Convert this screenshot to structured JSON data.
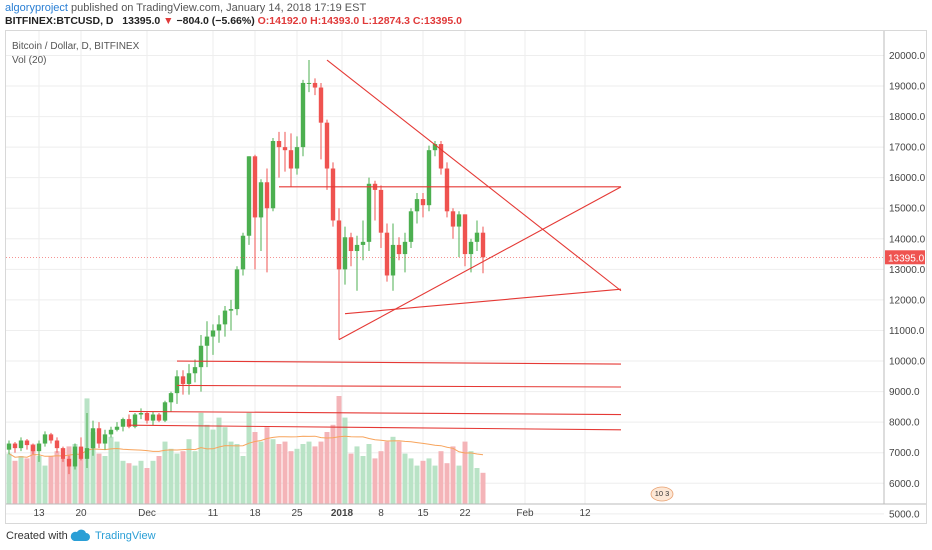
{
  "header": {
    "author": "algoryproject",
    "published": " published on TradingView.com, January 14, 2018 17:19 EST",
    "symbol": "BITFINEX:BTCUSD, D",
    "price": "13395.0",
    "change_arrow": "▼",
    "change": "−804.0 (−5.66%)",
    "ohlc": "O:14192.0 H:14393.0 L:12874.3 C:13395.0"
  },
  "footer": {
    "created_with": "Created with",
    "brand": "TradingView"
  },
  "badge": {
    "text": "10 3"
  },
  "colors": {
    "up": "#26a69a",
    "down": "#ef5350",
    "up_body": "#4caf50",
    "line": "#e53935",
    "ma": "#f7a45c",
    "price_tag": "#ef5350"
  },
  "chart_data": {
    "type": "candlestick",
    "title": "Bitcoin / Dollar, D, BITFINEX",
    "volume_label": "Vol (20)",
    "x_ticks": [
      "13",
      "20",
      "Dec",
      "11",
      "18",
      "25",
      "2018",
      "8",
      "15",
      "22",
      "Feb",
      "12"
    ],
    "y_ticks": [
      "20000.0",
      "19000.0",
      "18000.0",
      "17000.0",
      "16000.0",
      "15000.0",
      "14000.0",
      "13000.0",
      "12000.0",
      "11000.0",
      "10000.0",
      "9000.0",
      "8000.0",
      "7000.0",
      "6000.0",
      "5000.0"
    ],
    "ylim": [
      4700,
      20800
    ],
    "last_price": 13395.0,
    "last_price_label": "13395.0",
    "start_date": "2017-11-08",
    "candles": [
      [
        7100,
        7400,
        6950,
        7300
      ],
      [
        7300,
        7350,
        7000,
        7150
      ],
      [
        7150,
        7500,
        7050,
        7400
      ],
      [
        7400,
        7450,
        7100,
        7250
      ],
      [
        7250,
        7300,
        6950,
        7050
      ],
      [
        7050,
        7400,
        6700,
        7300
      ],
      [
        7300,
        7700,
        7200,
        7600
      ],
      [
        7600,
        7650,
        7300,
        7400
      ],
      [
        7400,
        7500,
        7000,
        7150
      ],
      [
        7150,
        7200,
        6700,
        6800
      ],
      [
        6800,
        6900,
        6300,
        6550
      ],
      [
        6550,
        7300,
        6450,
        7200
      ],
      [
        7200,
        7500,
        6750,
        6800
      ],
      [
        6800,
        8300,
        6500,
        7150
      ],
      [
        7150,
        8050,
        6900,
        7800
      ],
      [
        7800,
        8000,
        7150,
        7300
      ],
      [
        7300,
        7750,
        7100,
        7600
      ],
      [
        7600,
        7850,
        7500,
        7750
      ],
      [
        7750,
        8000,
        7700,
        7850
      ],
      [
        7850,
        8150,
        7700,
        8100
      ],
      [
        8100,
        8250,
        7800,
        7850
      ],
      [
        7850,
        8300,
        7800,
        8250
      ],
      [
        8250,
        8450,
        8100,
        8300
      ],
      [
        8300,
        8350,
        7950,
        8050
      ],
      [
        8050,
        8350,
        7900,
        8250
      ],
      [
        8250,
        8300,
        8000,
        8050
      ],
      [
        8050,
        8700,
        8000,
        8650
      ],
      [
        8650,
        9000,
        8350,
        8950
      ],
      [
        8950,
        9700,
        8600,
        9500
      ],
      [
        9500,
        9700,
        8900,
        9250
      ],
      [
        9250,
        9900,
        8900,
        9600
      ],
      [
        9600,
        10050,
        9300,
        9800
      ],
      [
        9800,
        10850,
        9000,
        10500
      ],
      [
        10500,
        11300,
        9800,
        10800
      ],
      [
        10800,
        11200,
        10200,
        11000
      ],
      [
        11000,
        11500,
        10600,
        11200
      ],
      [
        11200,
        11800,
        10800,
        11650
      ],
      [
        11650,
        12000,
        11000,
        11700
      ],
      [
        11700,
        13100,
        11500,
        13000
      ],
      [
        13000,
        14200,
        12800,
        14100
      ],
      [
        14100,
        16700,
        13800,
        16700
      ],
      [
        16700,
        16750,
        13000,
        14700
      ],
      [
        14700,
        15950,
        13600,
        15850
      ],
      [
        15850,
        16300,
        12900,
        15000
      ],
      [
        15000,
        17300,
        14900,
        17200
      ],
      [
        17200,
        17500,
        16000,
        17000
      ],
      [
        17000,
        17500,
        16200,
        16900
      ],
      [
        16900,
        17450,
        15700,
        16300
      ],
      [
        16300,
        17350,
        16100,
        17000
      ],
      [
        17000,
        19200,
        16700,
        19100
      ],
      [
        19100,
        19850,
        18800,
        19100
      ],
      [
        19100,
        19250,
        18700,
        18950
      ],
      [
        18950,
        19100,
        16600,
        17800
      ],
      [
        17800,
        17900,
        15600,
        16300
      ],
      [
        16300,
        16500,
        14400,
        14600
      ],
      [
        14600,
        15000,
        10700,
        13000
      ],
      [
        13000,
        14400,
        12500,
        14050
      ],
      [
        14050,
        14200,
        13100,
        13600
      ],
      [
        13600,
        14100,
        12300,
        13800
      ],
      [
        13800,
        14600,
        13300,
        13900
      ],
      [
        13900,
        16000,
        13600,
        15800
      ],
      [
        15800,
        15900,
        14600,
        15600
      ],
      [
        15600,
        15750,
        13700,
        14200
      ],
      [
        14200,
        14500,
        12600,
        12800
      ],
      [
        12800,
        14500,
        12300,
        13800
      ],
      [
        13800,
        14050,
        13300,
        13500
      ],
      [
        13500,
        14200,
        12900,
        13900
      ],
      [
        13900,
        15000,
        13700,
        14900
      ],
      [
        14900,
        15500,
        14500,
        15300
      ],
      [
        15300,
        15500,
        14700,
        15100
      ],
      [
        15100,
        17050,
        14900,
        16900
      ],
      [
        16900,
        17200,
        16700,
        17100
      ],
      [
        17100,
        17200,
        16100,
        16300
      ],
      [
        16300,
        16500,
        14700,
        14900
      ],
      [
        14900,
        15000,
        14000,
        14400
      ],
      [
        14400,
        14900,
        13400,
        14800
      ],
      [
        14800,
        14800,
        13100,
        13500
      ],
      [
        13500,
        14000,
        12900,
        13900
      ],
      [
        13900,
        14600,
        13600,
        14200
      ],
      [
        14200,
        14400,
        12874,
        13395
      ]
    ],
    "volume": [
      1,
      2,
      1,
      1,
      2,
      1,
      1,
      2,
      2,
      1,
      2,
      2,
      2,
      4,
      2,
      1,
      1,
      2,
      2,
      1,
      1,
      1,
      1,
      1,
      1,
      1,
      2,
      1,
      1,
      1,
      1,
      1,
      2,
      2,
      2,
      2,
      3,
      2,
      2,
      1,
      1,
      2,
      2,
      2,
      1,
      2,
      2,
      1,
      2,
      2,
      2,
      1,
      1,
      2,
      3,
      4,
      2,
      1,
      2,
      1,
      1,
      1,
      1,
      2,
      1,
      1,
      1,
      1,
      1,
      1,
      1,
      1,
      2,
      1,
      2,
      1,
      1,
      2,
      1,
      1
    ],
    "volume_values": [
      2.1,
      1.8,
      2.0,
      1.9,
      2.5,
      2.0,
      1.6,
      2.0,
      2.2,
      1.9,
      2.4,
      2.5,
      2.1,
      4.4,
      3.0,
      2.1,
      2.0,
      2.8,
      2.6,
      1.8,
      1.7,
      1.6,
      1.8,
      1.5,
      1.8,
      2.0,
      2.6,
      2.3,
      2.1,
      2.2,
      2.7,
      2.2,
      3.8,
      3.3,
      3.1,
      3.6,
      3.2,
      2.6,
      2.5,
      2.0,
      3.8,
      3.0,
      2.6,
      3.2,
      2.7,
      2.5,
      2.6,
      2.2,
      2.3,
      2.5,
      2.6,
      2.4,
      2.6,
      3.0,
      3.3,
      4.5,
      3.6,
      2.1,
      2.4,
      2.0,
      2.5,
      1.9,
      2.2,
      2.6,
      2.8,
      2.6,
      2.1,
      1.9,
      1.6,
      1.8,
      1.9,
      1.6,
      2.2,
      1.7,
      2.4,
      1.6,
      2.6,
      2.2,
      1.5,
      1.3
    ],
    "trendlines": [
      {
        "from": [
          55,
          10700
        ],
        "to": [
          102,
          15700
        ]
      },
      {
        "from": [
          53,
          19850
        ],
        "to": [
          102,
          12300
        ]
      },
      {
        "from": [
          56,
          11550
        ],
        "to": [
          102,
          12350
        ]
      },
      {
        "from": [
          45,
          15700
        ],
        "to": [
          102,
          15700
        ]
      },
      {
        "from": [
          28,
          10000
        ],
        "to": [
          102,
          9900
        ]
      },
      {
        "from": [
          28,
          9200
        ],
        "to": [
          102,
          9150
        ]
      },
      {
        "from": [
          20,
          8350
        ],
        "to": [
          102,
          8250
        ]
      },
      {
        "from": [
          20,
          7900
        ],
        "to": [
          102,
          7750
        ]
      }
    ]
  }
}
